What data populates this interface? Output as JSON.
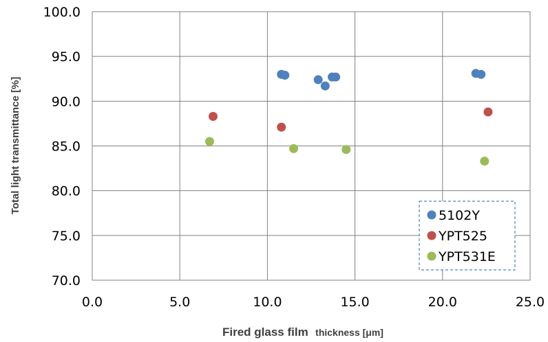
{
  "chart_data": {
    "type": "scatter",
    "xlabel_main": "Fired glass film",
    "xlabel_small": "thickness [μm]",
    "ylabel": "Total light transmittance [%]",
    "xlim": [
      0,
      25
    ],
    "ylim": [
      70,
      100
    ],
    "x_ticks": [
      "0.0",
      "5.0",
      "10.0",
      "15.0",
      "20.0",
      "25.0"
    ],
    "y_ticks": [
      "70.0",
      "75.0",
      "80.0",
      "85.0",
      "90.0",
      "95.0",
      "100.0"
    ],
    "grid": true,
    "legend_position": "bottom-right",
    "series": [
      {
        "name": "5102Y",
        "color": "#4f81bd",
        "points": [
          [
            10.8,
            93.0
          ],
          [
            11.0,
            92.9
          ],
          [
            12.9,
            92.4
          ],
          [
            13.3,
            91.7
          ],
          [
            13.7,
            92.7
          ],
          [
            13.9,
            92.7
          ],
          [
            21.9,
            93.1
          ],
          [
            22.2,
            93.0
          ]
        ]
      },
      {
        "name": "YPT525",
        "color": "#c0504d",
        "points": [
          [
            6.9,
            88.3
          ],
          [
            10.8,
            87.1
          ],
          [
            22.6,
            88.8
          ]
        ]
      },
      {
        "name": "YPT531E",
        "color": "#9bbb59",
        "points": [
          [
            6.7,
            85.5
          ],
          [
            11.5,
            84.7
          ],
          [
            14.5,
            84.6
          ],
          [
            22.4,
            83.3
          ]
        ]
      }
    ]
  }
}
